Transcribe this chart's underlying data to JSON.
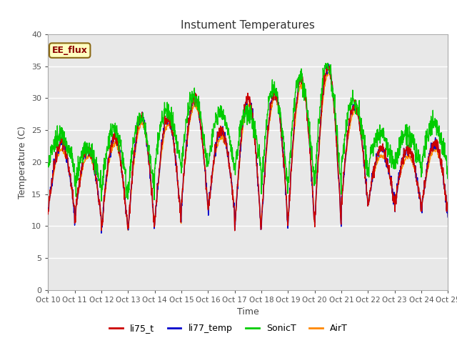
{
  "title": "Instument Temperatures",
  "xlabel": "Time",
  "ylabel": "Temperature (C)",
  "ylim": [
    0,
    40
  ],
  "xlim": [
    0,
    15
  ],
  "background_color": "#e0e0e0",
  "plot_bg_color": "#e8e8e8",
  "fig_bg_color": "#ffffff",
  "annotation_text": "EE_flux",
  "annotation_bg": "#ffffc0",
  "annotation_border": "#8b6914",
  "annotation_text_color": "#8b0000",
  "colors": {
    "li75_t": "#cc0000",
    "li77_temp": "#0000cc",
    "SonicT": "#00cc00",
    "AirT": "#ff8800"
  },
  "legend_labels": [
    "li75_t",
    "li77_temp",
    "SonicT",
    "AirT"
  ],
  "x_tick_labels": [
    "Oct 10",
    "Oct 11",
    "Oct 12",
    "Oct 13",
    "Oct 14",
    "Oct 15",
    "Oct 16",
    "Oct 17",
    "Oct 18",
    "Oct 19",
    "Oct 20",
    "Oct 21",
    "Oct 22",
    "Oct 23",
    "Oct 24",
    "Oct 25"
  ],
  "yticks": [
    0,
    5,
    10,
    15,
    20,
    25,
    30,
    35,
    40
  ],
  "n_points": 1500
}
